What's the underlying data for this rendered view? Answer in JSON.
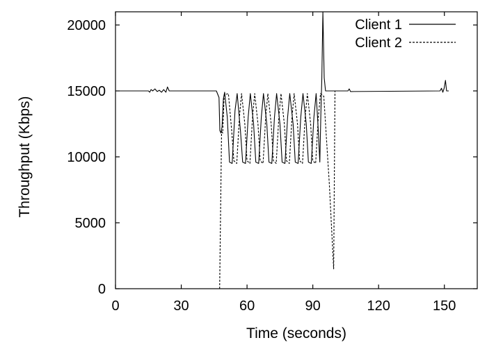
{
  "chart_data": {
    "type": "line",
    "title": "",
    "xlabel": "Time (seconds)",
    "ylabel": "Throughput (Kbps)",
    "xlim": [
      0,
      165
    ],
    "ylim": [
      0,
      21000
    ],
    "x_ticks": [
      0,
      30,
      60,
      90,
      120,
      150
    ],
    "y_ticks": [
      0,
      5000,
      10000,
      15000,
      20000
    ],
    "grid": false,
    "legend_position": "top-right",
    "series": [
      {
        "name": "Client 1",
        "style": "solid",
        "color": "#000000",
        "points": [
          [
            0,
            15000
          ],
          [
            15,
            15000
          ],
          [
            15.6,
            14900
          ],
          [
            16.2,
            15100
          ],
          [
            17,
            15000
          ],
          [
            18,
            15150
          ],
          [
            19,
            14950
          ],
          [
            20,
            15050
          ],
          [
            21,
            14900
          ],
          [
            22,
            15100
          ],
          [
            23,
            14900
          ],
          [
            23.7,
            15300
          ],
          [
            24.5,
            15000
          ],
          [
            46,
            15000
          ],
          [
            47.2,
            14500
          ],
          [
            47.6,
            12000
          ],
          [
            48.1,
            11800
          ],
          [
            48.6,
            12300
          ],
          [
            49.2,
            14400
          ],
          [
            49.8,
            14900
          ],
          [
            51,
            13000
          ],
          [
            52,
            9600
          ],
          [
            53.2,
            9500
          ],
          [
            54.5,
            13500
          ],
          [
            55.5,
            14800
          ],
          [
            57,
            12000
          ],
          [
            58,
            9600
          ],
          [
            59.3,
            9500
          ],
          [
            60.5,
            13000
          ],
          [
            61.5,
            14800
          ],
          [
            63,
            12500
          ],
          [
            64,
            9600
          ],
          [
            65.3,
            9500
          ],
          [
            66.5,
            13000
          ],
          [
            67.5,
            14800
          ],
          [
            69,
            12500
          ],
          [
            70,
            9600
          ],
          [
            71.3,
            9500
          ],
          [
            72.5,
            13000
          ],
          [
            73.5,
            14800
          ],
          [
            75,
            12500
          ],
          [
            76,
            9600
          ],
          [
            77.3,
            9500
          ],
          [
            78.5,
            13000
          ],
          [
            79.5,
            14800
          ],
          [
            81,
            12500
          ],
          [
            82,
            9600
          ],
          [
            83.3,
            9500
          ],
          [
            84.5,
            13000
          ],
          [
            85.5,
            14800
          ],
          [
            87,
            12500
          ],
          [
            88,
            9600
          ],
          [
            89.3,
            9500
          ],
          [
            90.5,
            13000
          ],
          [
            91.5,
            14800
          ],
          [
            92.5,
            12000
          ],
          [
            93.2,
            9600
          ],
          [
            93.7,
            13500
          ],
          [
            94.1,
            16000
          ],
          [
            94.6,
            21000
          ],
          [
            95.2,
            16000
          ],
          [
            95.8,
            15000
          ],
          [
            106,
            15000
          ],
          [
            106.6,
            15150
          ],
          [
            107.2,
            14950
          ],
          [
            148,
            15000
          ],
          [
            148.7,
            15200
          ],
          [
            149.3,
            14900
          ],
          [
            149.9,
            15200
          ],
          [
            150.5,
            15800
          ],
          [
            151,
            15000
          ],
          [
            152,
            15000
          ]
        ]
      },
      {
        "name": "Client 2",
        "style": "dashed",
        "color": "#000000",
        "points": [
          [
            47.5,
            0
          ],
          [
            48.4,
            12000
          ],
          [
            48.9,
            11800
          ],
          [
            49.6,
            14700
          ],
          [
            51.5,
            14800
          ],
          [
            53,
            12000
          ],
          [
            54,
            9700
          ],
          [
            55.3,
            9500
          ],
          [
            56.5,
            13000
          ],
          [
            57.5,
            14800
          ],
          [
            59,
            12500
          ],
          [
            60,
            9700
          ],
          [
            61.3,
            9500
          ],
          [
            62.5,
            13000
          ],
          [
            63.5,
            14800
          ],
          [
            65,
            12500
          ],
          [
            66,
            9700
          ],
          [
            67.3,
            9500
          ],
          [
            68.5,
            13000
          ],
          [
            69.5,
            14800
          ],
          [
            71,
            12500
          ],
          [
            72,
            9700
          ],
          [
            73.3,
            9500
          ],
          [
            74.5,
            13000
          ],
          [
            75.5,
            14800
          ],
          [
            77,
            12500
          ],
          [
            78,
            9700
          ],
          [
            79.3,
            9500
          ],
          [
            80.5,
            13000
          ],
          [
            81.5,
            14800
          ],
          [
            83,
            12500
          ],
          [
            84,
            9700
          ],
          [
            85.3,
            9500
          ],
          [
            86.5,
            13000
          ],
          [
            87.5,
            14800
          ],
          [
            89,
            12500
          ],
          [
            90,
            9700
          ],
          [
            91.3,
            9500
          ],
          [
            92.5,
            13000
          ],
          [
            93.5,
            14800
          ],
          [
            95,
            14600
          ],
          [
            97.5,
            8000
          ],
          [
            99.5,
            1500
          ],
          [
            100.1,
            15000
          ]
        ]
      }
    ]
  }
}
